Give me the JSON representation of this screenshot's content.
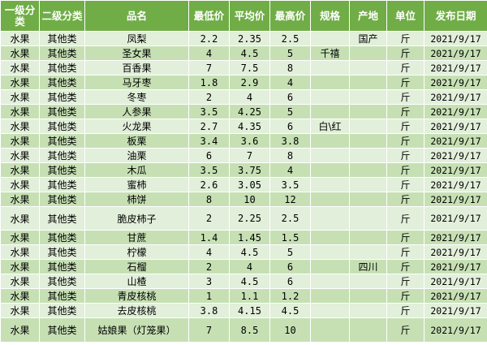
{
  "headers": [
    "一级分类",
    "二级分类",
    "品名",
    "最低价",
    "平均价",
    "最高价",
    "规格",
    "产地",
    "单位",
    "发布日期"
  ],
  "rows": [
    [
      "水果",
      "其他类",
      "凤梨",
      "2.2",
      "2.35",
      "2.5",
      "",
      "国产",
      "斤",
      "2021/9/17"
    ],
    [
      "水果",
      "其他类",
      "圣女果",
      "4",
      "4.5",
      "5",
      "千禧",
      "",
      "斤",
      "2021/9/17"
    ],
    [
      "水果",
      "其他类",
      "百香果",
      "7",
      "7.5",
      "8",
      "",
      "",
      "斤",
      "2021/9/17"
    ],
    [
      "水果",
      "其他类",
      "马牙枣",
      "1.8",
      "2.9",
      "4",
      "",
      "",
      "斤",
      "2021/9/17"
    ],
    [
      "水果",
      "其他类",
      "冬枣",
      "2",
      "4",
      "6",
      "",
      "",
      "斤",
      "2021/9/17"
    ],
    [
      "水果",
      "其他类",
      "人参果",
      "3.5",
      "4.25",
      "5",
      "",
      "",
      "斤",
      "2021/9/17"
    ],
    [
      "水果",
      "其他类",
      "火龙果",
      "2.7",
      "4.35",
      "6",
      "白\\红",
      "",
      "斤",
      "2021/9/17"
    ],
    [
      "水果",
      "其他类",
      "板栗",
      "3.4",
      "3.6",
      "3.8",
      "",
      "",
      "斤",
      "2021/9/17"
    ],
    [
      "水果",
      "其他类",
      "油栗",
      "6",
      "7",
      "8",
      "",
      "",
      "斤",
      "2021/9/17"
    ],
    [
      "水果",
      "其他类",
      "木瓜",
      "3.5",
      "3.75",
      "4",
      "",
      "",
      "斤",
      "2021/9/17"
    ],
    [
      "水果",
      "其他类",
      "蜜柿",
      "2.6",
      "3.05",
      "3.5",
      "",
      "",
      "斤",
      "2021/9/17"
    ],
    [
      "水果",
      "其他类",
      "柿饼",
      "8",
      "10",
      "12",
      "",
      "",
      "斤",
      "2021/9/17"
    ],
    [
      "水果",
      "其他类",
      "脆皮柿子",
      "2",
      "2.25",
      "2.5",
      "",
      "",
      "斤",
      "2021/9/17"
    ],
    [
      "水果",
      "其他类",
      "甘蔗",
      "1.4",
      "1.45",
      "1.5",
      "",
      "",
      "斤",
      "2021/9/17"
    ],
    [
      "水果",
      "其他类",
      "柠檬",
      "4",
      "4.5",
      "5",
      "",
      "",
      "斤",
      "2021/9/17"
    ],
    [
      "水果",
      "其他类",
      "石榴",
      "2",
      "4",
      "6",
      "",
      "四川",
      "斤",
      "2021/9/17"
    ],
    [
      "水果",
      "其他类",
      "山楂",
      "3",
      "4.5",
      "6",
      "",
      "",
      "斤",
      "2021/9/17"
    ],
    [
      "水果",
      "其他类",
      "青皮核桃",
      "1",
      "1.1",
      "1.2",
      "",
      "",
      "斤",
      "2021/9/17"
    ],
    [
      "水果",
      "其他类",
      "去皮核桃",
      "3.8",
      "4.15",
      "4.5",
      "",
      "",
      "斤",
      "2021/9/17"
    ],
    [
      "水果",
      "其他类",
      "姑娘果（灯笼果）",
      "7",
      "8.5",
      "10",
      "",
      "",
      "斤",
      "2021/9/17"
    ]
  ]
}
